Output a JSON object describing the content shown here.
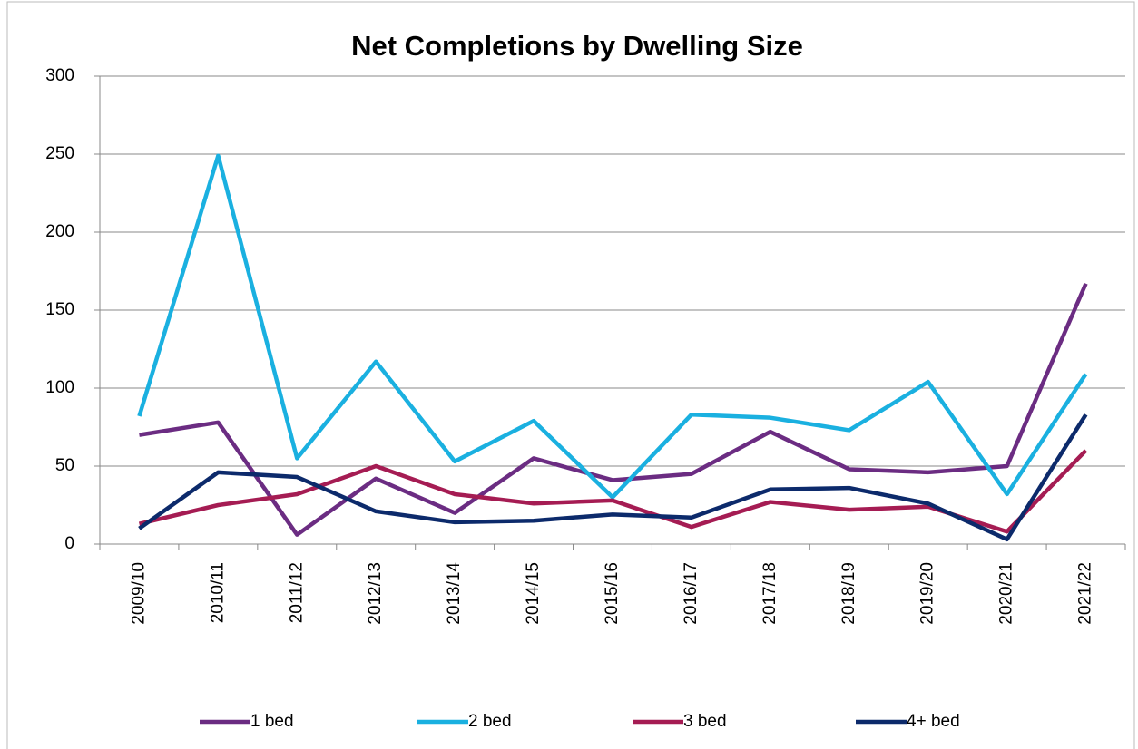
{
  "chart_data": {
    "type": "line",
    "title": "Net Completions by Dwelling Size",
    "categories": [
      "2009/10",
      "2010/11",
      "2011/12",
      "2012/13",
      "2013/14",
      "2014/15",
      "2015/16",
      "2016/17",
      "2017/18",
      "2018/19",
      "2019/20",
      "2020/21",
      "2021/22"
    ],
    "series": [
      {
        "name": "1 bed",
        "color": "#6b2c82",
        "values": [
          70,
          78,
          6,
          42,
          20,
          55,
          41,
          45,
          72,
          48,
          46,
          50,
          167
        ]
      },
      {
        "name": "2 bed",
        "color": "#1ab0e0",
        "values": [
          82,
          249,
          55,
          117,
          53,
          79,
          30,
          83,
          81,
          73,
          104,
          32,
          109
        ]
      },
      {
        "name": "3 bed",
        "color": "#a51c53",
        "values": [
          13,
          25,
          32,
          50,
          32,
          26,
          28,
          11,
          27,
          22,
          24,
          8,
          60
        ]
      },
      {
        "name": "4+ bed",
        "color": "#0c2a6b",
        "values": [
          10,
          46,
          43,
          21,
          14,
          15,
          19,
          17,
          35,
          36,
          26,
          3,
          83
        ]
      }
    ],
    "ylim": [
      0,
      300
    ],
    "yticks": [
      0,
      50,
      100,
      150,
      200,
      250,
      300
    ],
    "grid": true,
    "legend": "bottom"
  }
}
